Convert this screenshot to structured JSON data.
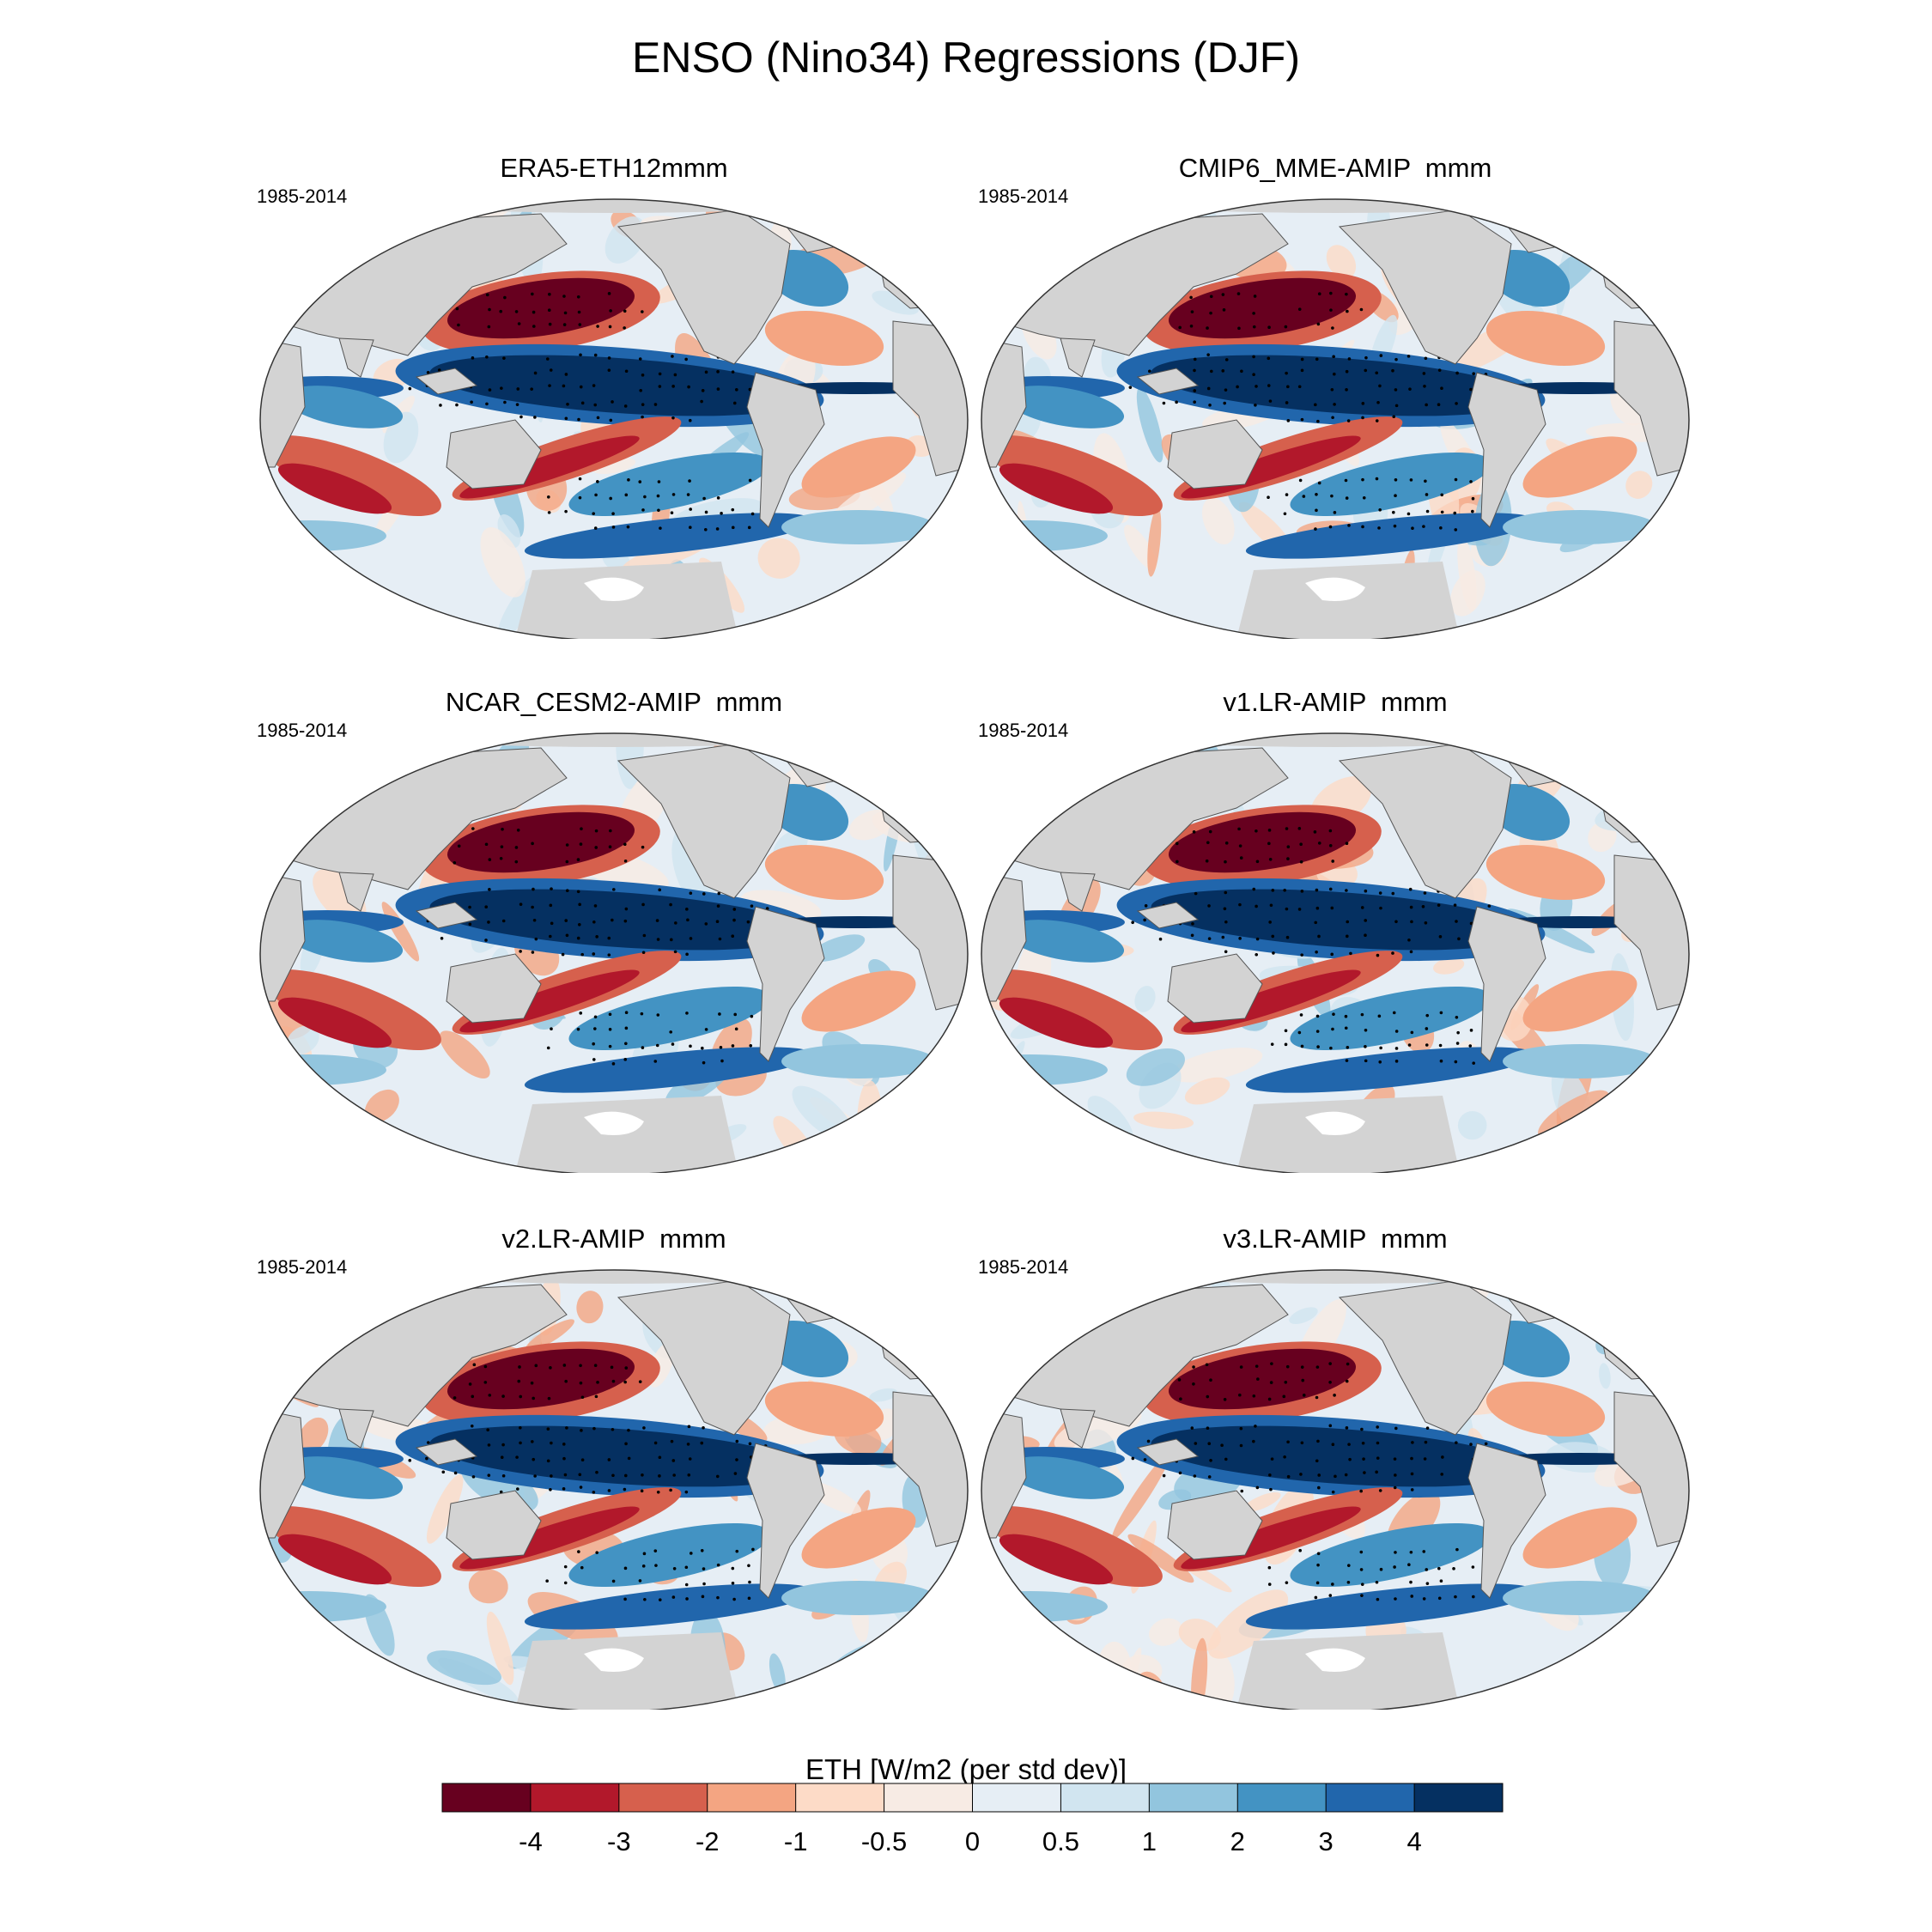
{
  "title": "ENSO (Nino34) Regressions (DJF)",
  "colors": {
    "land": "#d3d3d3",
    "outline": "#555555",
    "antarctic_ice": "#ffffff",
    "levels": [
      "#67001f",
      "#b2182b",
      "#d6604d",
      "#f4a582",
      "#fddbc7",
      "#f7ebe4",
      "#e6eef5",
      "#d1e5f0",
      "#92c5de",
      "#4393c3",
      "#2166ac",
      "#053061"
    ]
  },
  "chart_data": {
    "type": "heatmap",
    "title": "ENSO (Nino34) Regressions (DJF)",
    "variable": "ETH",
    "colorbar": {
      "label": "ETH [W/m2 (per std dev)]",
      "tick_labels": [
        "-4",
        "-3",
        "-2",
        "-1",
        "-0.5",
        "0",
        "0.5",
        "1",
        "2",
        "3",
        "4"
      ],
      "levels": [
        -4,
        -3,
        -2,
        -1,
        -0.5,
        0,
        0.5,
        1,
        2,
        3,
        4
      ]
    },
    "panels": [
      {
        "title": "ERA5-ETH12mmm",
        "period": "1985-2014"
      },
      {
        "title": "CMIP6_MME-AMIP  mmm",
        "period": "1985-2014"
      },
      {
        "title": "NCAR_CESM2-AMIP  mmm",
        "period": "1985-2014"
      },
      {
        "title": "v1.LR-AMIP  mmm",
        "period": "1985-2014"
      },
      {
        "title": "v2.LR-AMIP  mmm",
        "period": "1985-2014"
      },
      {
        "title": "v3.LR-AMIP  mmm",
        "period": "1985-2014"
      }
    ]
  }
}
